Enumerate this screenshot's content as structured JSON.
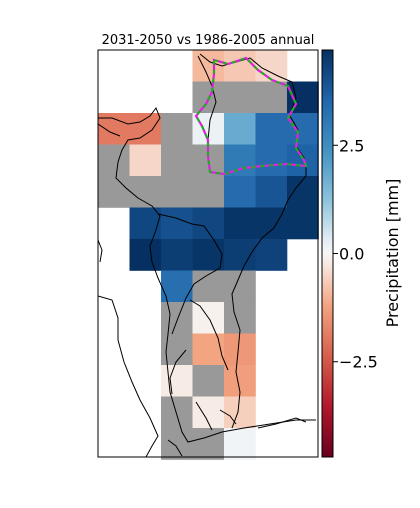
{
  "chart_data": {
    "type": "heatmap",
    "title": "2031-2050 vs 1986-2005 annual",
    "colorbar": {
      "label": "Precipitation [mm]",
      "range": [
        -4.7,
        4.7
      ],
      "ticks": [
        2.5,
        0.0,
        -2.5
      ],
      "tick_labels": [
        "2.5",
        "0.0",
        "−2.5"
      ],
      "colormap": "RdBu (red negative, blue positive)"
    },
    "missing_color": "#999999",
    "grid": {
      "rows": 13,
      "cols": 7
    },
    "cells": [
      {
        "row": 0,
        "col": 3,
        "value": -0.9
      },
      {
        "row": 0,
        "col": 4,
        "value": -0.7
      },
      {
        "row": 0,
        "col": 5,
        "value": -0.5
      },
      {
        "row": 1,
        "col": 3,
        "value": null
      },
      {
        "row": 1,
        "col": 4,
        "value": null
      },
      {
        "row": 1,
        "col": 5,
        "value": null
      },
      {
        "row": 1,
        "col": 6,
        "value": 4.7
      },
      {
        "row": 2,
        "col": 0,
        "value": -1.9
      },
      {
        "row": 2,
        "col": 1,
        "value": -1.9
      },
      {
        "row": 2,
        "col": 2,
        "value": null
      },
      {
        "row": 2,
        "col": 3,
        "value": 0.2
      },
      {
        "row": 2,
        "col": 4,
        "value": 1.8
      },
      {
        "row": 2,
        "col": 5,
        "value": 3.4
      },
      {
        "row": 2,
        "col": 6,
        "value": 3.4
      },
      {
        "row": 3,
        "col": 0,
        "value": null
      },
      {
        "row": 3,
        "col": 1,
        "value": -0.5
      },
      {
        "row": 3,
        "col": 2,
        "value": null
      },
      {
        "row": 3,
        "col": 3,
        "value": null
      },
      {
        "row": 3,
        "col": 4,
        "value": 3.0
      },
      {
        "row": 3,
        "col": 5,
        "value": 3.4
      },
      {
        "row": 3,
        "col": 6,
        "value": 3.6
      },
      {
        "row": 4,
        "col": 0,
        "value": null
      },
      {
        "row": 4,
        "col": 1,
        "value": null
      },
      {
        "row": 4,
        "col": 2,
        "value": null
      },
      {
        "row": 4,
        "col": 3,
        "value": null
      },
      {
        "row": 4,
        "col": 4,
        "value": 3.4
      },
      {
        "row": 4,
        "col": 5,
        "value": 3.9
      },
      {
        "row": 4,
        "col": 6,
        "value": 4.6
      },
      {
        "row": 5,
        "col": 1,
        "value": 4.2
      },
      {
        "row": 5,
        "col": 2,
        "value": 4.0
      },
      {
        "row": 5,
        "col": 3,
        "value": 4.2
      },
      {
        "row": 5,
        "col": 4,
        "value": 4.6
      },
      {
        "row": 5,
        "col": 5,
        "value": 4.6
      },
      {
        "row": 5,
        "col": 6,
        "value": 4.6
      },
      {
        "row": 6,
        "col": 1,
        "value": 4.7
      },
      {
        "row": 6,
        "col": 2,
        "value": 4.4
      },
      {
        "row": 6,
        "col": 3,
        "value": 4.6
      },
      {
        "row": 6,
        "col": 4,
        "value": 4.4
      },
      {
        "row": 6,
        "col": 5,
        "value": 4.3
      },
      {
        "row": 7,
        "col": 2,
        "value": 3.3
      },
      {
        "row": 7,
        "col": 3,
        "value": null
      },
      {
        "row": 7,
        "col": 4,
        "value": null
      },
      {
        "row": 8,
        "col": 2,
        "value": null
      },
      {
        "row": 8,
        "col": 3,
        "value": -0.1
      },
      {
        "row": 8,
        "col": 4,
        "value": null
      },
      {
        "row": 9,
        "col": 2,
        "value": null
      },
      {
        "row": 9,
        "col": 3,
        "value": -1.2
      },
      {
        "row": 9,
        "col": 4,
        "value": -1.4
      },
      {
        "row": 10,
        "col": 2,
        "value": -0.2
      },
      {
        "row": 10,
        "col": 3,
        "value": null
      },
      {
        "row": 10,
        "col": 4,
        "value": -1.3
      },
      {
        "row": 11,
        "col": 2,
        "value": null
      },
      {
        "row": 11,
        "col": 3,
        "value": -0.2
      },
      {
        "row": 11,
        "col": 4,
        "value": -0.6
      },
      {
        "row": 12,
        "col": 2,
        "value": null
      },
      {
        "row": 12,
        "col": 3,
        "value": null
      },
      {
        "row": 12,
        "col": 4,
        "value": 0.1
      }
    ]
  }
}
